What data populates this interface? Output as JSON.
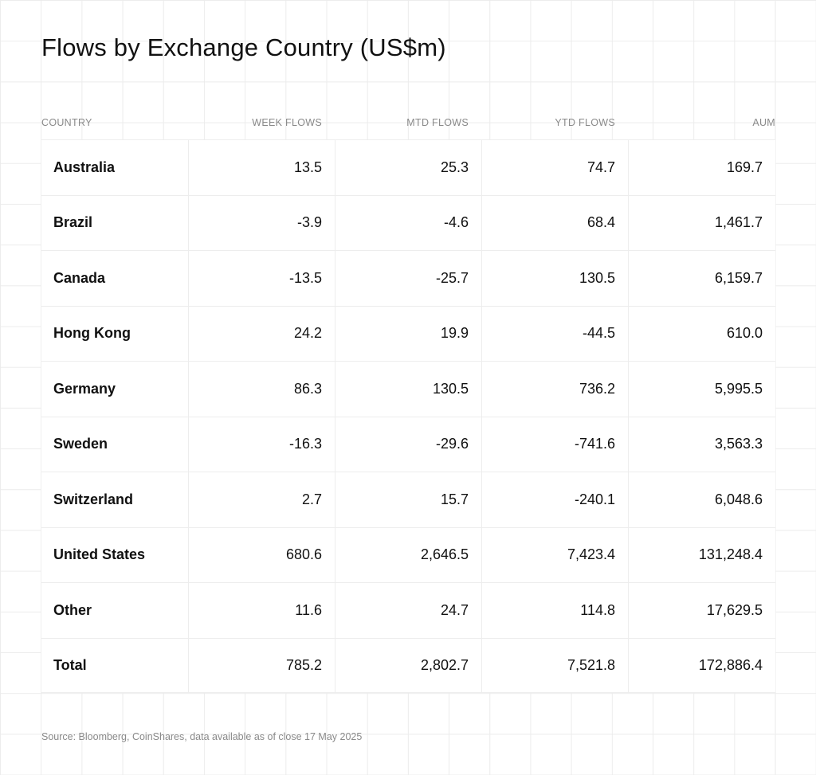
{
  "title": "Flows by Exchange Country (US$m)",
  "source": "Source: Bloomberg, CoinShares, data available as of close 17 May 2025",
  "chart_data": {
    "type": "table",
    "title": "Flows by Exchange Country (US$m)",
    "columns": [
      "COUNTRY",
      "WEEK FLOWS",
      "MTD FLOWS",
      "YTD FLOWS",
      "AUM"
    ],
    "rows": [
      [
        "Australia",
        "13.5",
        "25.3",
        "74.7",
        "169.7"
      ],
      [
        "Brazil",
        "-3.9",
        "-4.6",
        "68.4",
        "1,461.7"
      ],
      [
        "Canada",
        "-13.5",
        "-25.7",
        "130.5",
        "6,159.7"
      ],
      [
        "Hong Kong",
        "24.2",
        "19.9",
        "-44.5",
        "610.0"
      ],
      [
        "Germany",
        "86.3",
        "130.5",
        "736.2",
        "5,995.5"
      ],
      [
        "Sweden",
        "-16.3",
        "-29.6",
        "-741.6",
        "3,563.3"
      ],
      [
        "Switzerland",
        "2.7",
        "15.7",
        "-240.1",
        "6,048.6"
      ],
      [
        "United States",
        "680.6",
        "2,646.5",
        "7,423.4",
        "131,248.4"
      ],
      [
        "Other",
        "11.6",
        "24.7",
        "114.8",
        "17,629.5"
      ],
      [
        "Total",
        "785.2",
        "2,802.7",
        "7,521.8",
        "172,886.4"
      ]
    ]
  }
}
